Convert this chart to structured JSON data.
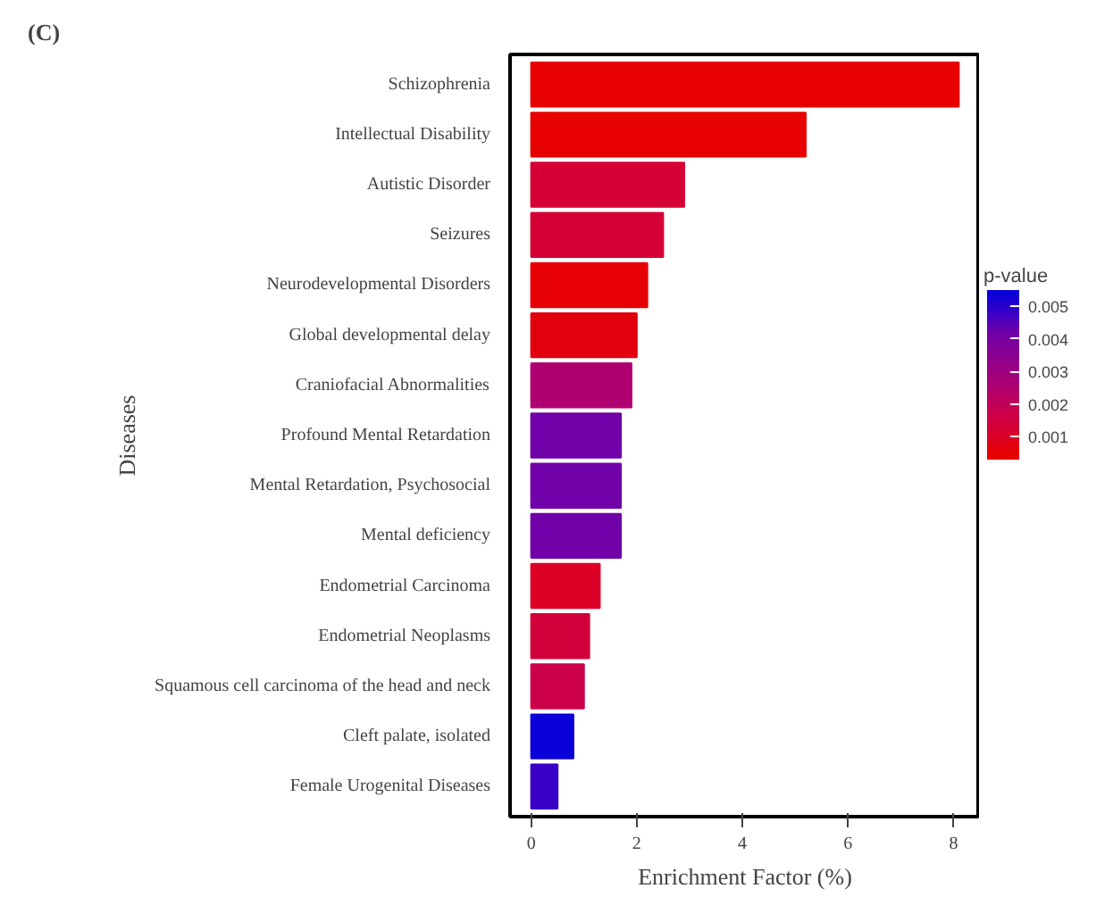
{
  "chart_data": {
    "type": "bar",
    "orientation": "horizontal",
    "title": "(C)",
    "xlabel": "Enrichment Factor (%)",
    "ylabel": "Diseases",
    "clabel": "p-value",
    "categories": [
      "Schizophrenia",
      "Intellectual Disability",
      "Autistic Disorder",
      "Seizures",
      "Neurodevelopmental Disorders",
      "Global developmental delay",
      "Craniofacial Abnormalities",
      "Profound Mental Retardation",
      "Mental Retardation, Psychosocial",
      "Mental deficiency",
      "Endometrial Carcinoma",
      "Endometrial Neoplasms",
      "Squamous cell carcinoma of the head and neck",
      "Cleft palate, isolated",
      "Female Urogenital Diseases"
    ],
    "values": [
      8.1,
      5.2,
      2.9,
      2.5,
      2.2,
      2.0,
      1.9,
      1.7,
      1.7,
      1.7,
      1.3,
      1.1,
      1.0,
      0.8,
      0.5
    ],
    "cvalues": [
      0.0004,
      0.0004,
      0.0013,
      0.0013,
      0.0005,
      0.0007,
      0.0025,
      0.0042,
      0.0042,
      0.0042,
      0.001,
      0.0014,
      0.0017,
      0.0054,
      0.0048
    ],
    "colors": [
      "#e60000",
      "#e60000",
      "#d40035",
      "#d40035",
      "#e60005",
      "#e1000d",
      "#b00070",
      "#7000a8",
      "#7000a8",
      "#7000a8",
      "#dc0028",
      "#d2003a",
      "#cc0048",
      "#0a00d8",
      "#3a00c8"
    ],
    "clim": [
      0.0003,
      0.0055
    ],
    "cticks": [
      0.001,
      0.002,
      0.003,
      0.004,
      0.005
    ],
    "xlim": [
      -0.4,
      8.5
    ],
    "xticks": [
      0,
      2,
      4,
      6,
      8
    ],
    "grid": false
  }
}
